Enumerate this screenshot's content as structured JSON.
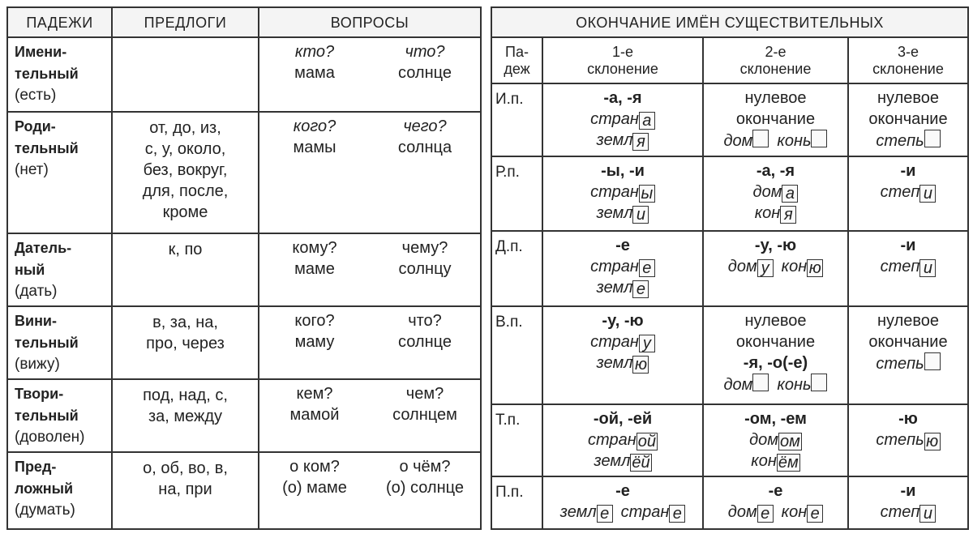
{
  "left": {
    "headers": [
      "ПАДЕЖИ",
      "ПРЕДЛОГИ",
      "ВОПРОСЫ"
    ],
    "rows": [
      {
        "case": [
          "Имени-",
          "тельный"
        ],
        "hint": "(есть)",
        "preps": [],
        "q": [
          {
            "q": "кто?",
            "w": "мама",
            "italic": true
          },
          {
            "q": "что?",
            "w": "солнце",
            "italic": true
          }
        ]
      },
      {
        "case": [
          "Роди-",
          "тельный"
        ],
        "hint": "(нет)",
        "preps": [
          "от, до, из,",
          "с, у, около,",
          "без, вокруг,",
          "для, после,",
          "кроме"
        ],
        "q": [
          {
            "q": "кого?",
            "w": "мамы",
            "italic": true
          },
          {
            "q": "чего?",
            "w": "солнца",
            "italic": true
          }
        ]
      },
      {
        "case": [
          "Датель-",
          "ный"
        ],
        "hint": "(дать)",
        "preps": [
          "к, по"
        ],
        "q": [
          {
            "q": "кому?",
            "w": "маме",
            "italic": false
          },
          {
            "q": "чему?",
            "w": "солнцу",
            "italic": false
          }
        ]
      },
      {
        "case": [
          "Вини-",
          "тельный"
        ],
        "hint": "(вижу)",
        "preps": [
          "в, за, на,",
          "про, через"
        ],
        "q": [
          {
            "q": "кого?",
            "w": "маму",
            "italic": false
          },
          {
            "q": "что?",
            "w": "солнце",
            "italic": false
          }
        ]
      },
      {
        "case": [
          "Твори-",
          "тельный"
        ],
        "hint": "(доволен)",
        "preps": [
          "под, над, с,",
          "за, между"
        ],
        "q": [
          {
            "q": "кем?",
            "w": "мамой",
            "italic": false
          },
          {
            "q": "чем?",
            "w": "солнцем",
            "italic": false
          }
        ]
      },
      {
        "case": [
          "Пред-",
          "ложный"
        ],
        "hint": "(думать)",
        "preps": [
          "о, об, во, в,",
          "на, при"
        ],
        "q": [
          {
            "q": "о ком?",
            "w": "(о) маме",
            "italic": false
          },
          {
            "q": "о чём?",
            "w": "(о) солнце",
            "italic": false
          }
        ]
      }
    ]
  },
  "right": {
    "title": "ОКОНЧАНИЕ ИМЁН СУЩЕСТВИТЕЛЬНЫХ",
    "headers": [
      [
        "Па-",
        "деж"
      ],
      [
        "1-е",
        "склонение"
      ],
      [
        "2-е",
        "склонение"
      ],
      [
        "3-е",
        "склонение"
      ]
    ],
    "rows": [
      {
        "case": "И.п.",
        "cells": [
          [
            {
              "b": "-а,  -я"
            },
            {
              "w": [
                {
                  "s": "стран",
                  "e": "а"
                }
              ]
            },
            {
              "w": [
                {
                  "s": "земл",
                  "e": "я"
                }
              ]
            }
          ],
          [
            {
              "n": "нулевое"
            },
            {
              "n": "окончание"
            },
            {
              "w": [
                {
                  "s": "дом",
                  "e": ""
                },
                {
                  "s": "конь",
                  "e": ""
                }
              ]
            }
          ],
          [
            {
              "n": "нулевое"
            },
            {
              "n": "окончание"
            },
            {
              "w": [
                {
                  "s": "степь",
                  "e": ""
                }
              ]
            }
          ]
        ]
      },
      {
        "case": "Р.п.",
        "cells": [
          [
            {
              "b": "-ы,  -и"
            },
            {
              "w": [
                {
                  "s": "стран",
                  "e": "ы"
                }
              ]
            },
            {
              "w": [
                {
                  "s": "земл",
                  "e": "и"
                }
              ]
            }
          ],
          [
            {
              "b": "-а,  -я"
            },
            {
              "w": [
                {
                  "s": "дом",
                  "e": "а"
                }
              ]
            },
            {
              "w": [
                {
                  "s": "кон",
                  "e": "я"
                }
              ]
            }
          ],
          [
            {
              "b": "-и"
            },
            {
              "w": [
                {
                  "s": "степ",
                  "e": "и"
                }
              ]
            }
          ]
        ]
      },
      {
        "case": "Д.п.",
        "cells": [
          [
            {
              "b": "-е"
            },
            {
              "w": [
                {
                  "s": "стран",
                  "e": "е"
                }
              ]
            },
            {
              "w": [
                {
                  "s": "земл",
                  "e": "е"
                }
              ]
            }
          ],
          [
            {
              "b": "-у,  -ю"
            },
            {
              "w": [
                {
                  "s": "дом",
                  "e": "у"
                },
                {
                  "s": "кон",
                  "e": "ю"
                }
              ]
            }
          ],
          [
            {
              "b": "-и"
            },
            {
              "w": [
                {
                  "s": "степ",
                  "e": "и"
                }
              ]
            }
          ]
        ]
      },
      {
        "case": "В.п.",
        "cells": [
          [
            {
              "b": "-у,  -ю"
            },
            {
              "w": [
                {
                  "s": "стран",
                  "e": "у"
                }
              ]
            },
            {
              "w": [
                {
                  "s": "земл",
                  "e": "ю"
                }
              ]
            }
          ],
          [
            {
              "n": "нулевое"
            },
            {
              "n": "окончание"
            },
            {
              "b": "-я,  -о(-е)"
            },
            {
              "w": [
                {
                  "s": "дом",
                  "e": ""
                },
                {
                  "s": "конь",
                  "e": ""
                }
              ]
            }
          ],
          [
            {
              "n": "нулевое"
            },
            {
              "n": "окончание"
            },
            {
              "w": [
                {
                  "s": "степь",
                  "e": ""
                }
              ]
            }
          ]
        ]
      },
      {
        "case": "Т.п.",
        "cells": [
          [
            {
              "b": "-ой,  -ей"
            },
            {
              "w": [
                {
                  "s": "стран",
                  "e": "ой"
                }
              ]
            },
            {
              "w": [
                {
                  "s": "земл",
                  "e": "ёй"
                }
              ]
            }
          ],
          [
            {
              "b": "-ом,  -ем"
            },
            {
              "w": [
                {
                  "s": "дом",
                  "e": "ом"
                }
              ]
            },
            {
              "w": [
                {
                  "s": "кон",
                  "e": "ём"
                }
              ]
            }
          ],
          [
            {
              "b": "-ю"
            },
            {
              "w": [
                {
                  "s": "степь",
                  "e": "ю"
                }
              ]
            }
          ]
        ]
      },
      {
        "case": "П.п.",
        "cells": [
          [
            {
              "b": "-е"
            },
            {
              "w": [
                {
                  "s": "земл",
                  "e": "е"
                },
                {
                  "s": "стран",
                  "e": "е"
                }
              ]
            }
          ],
          [
            {
              "b": "-е"
            },
            {
              "w": [
                {
                  "s": "дом",
                  "e": "е"
                },
                {
                  "s": "кон",
                  "e": "е"
                }
              ]
            }
          ],
          [
            {
              "b": "-и"
            },
            {
              "w": [
                {
                  "s": "степ",
                  "e": "и"
                }
              ]
            }
          ]
        ]
      }
    ]
  }
}
